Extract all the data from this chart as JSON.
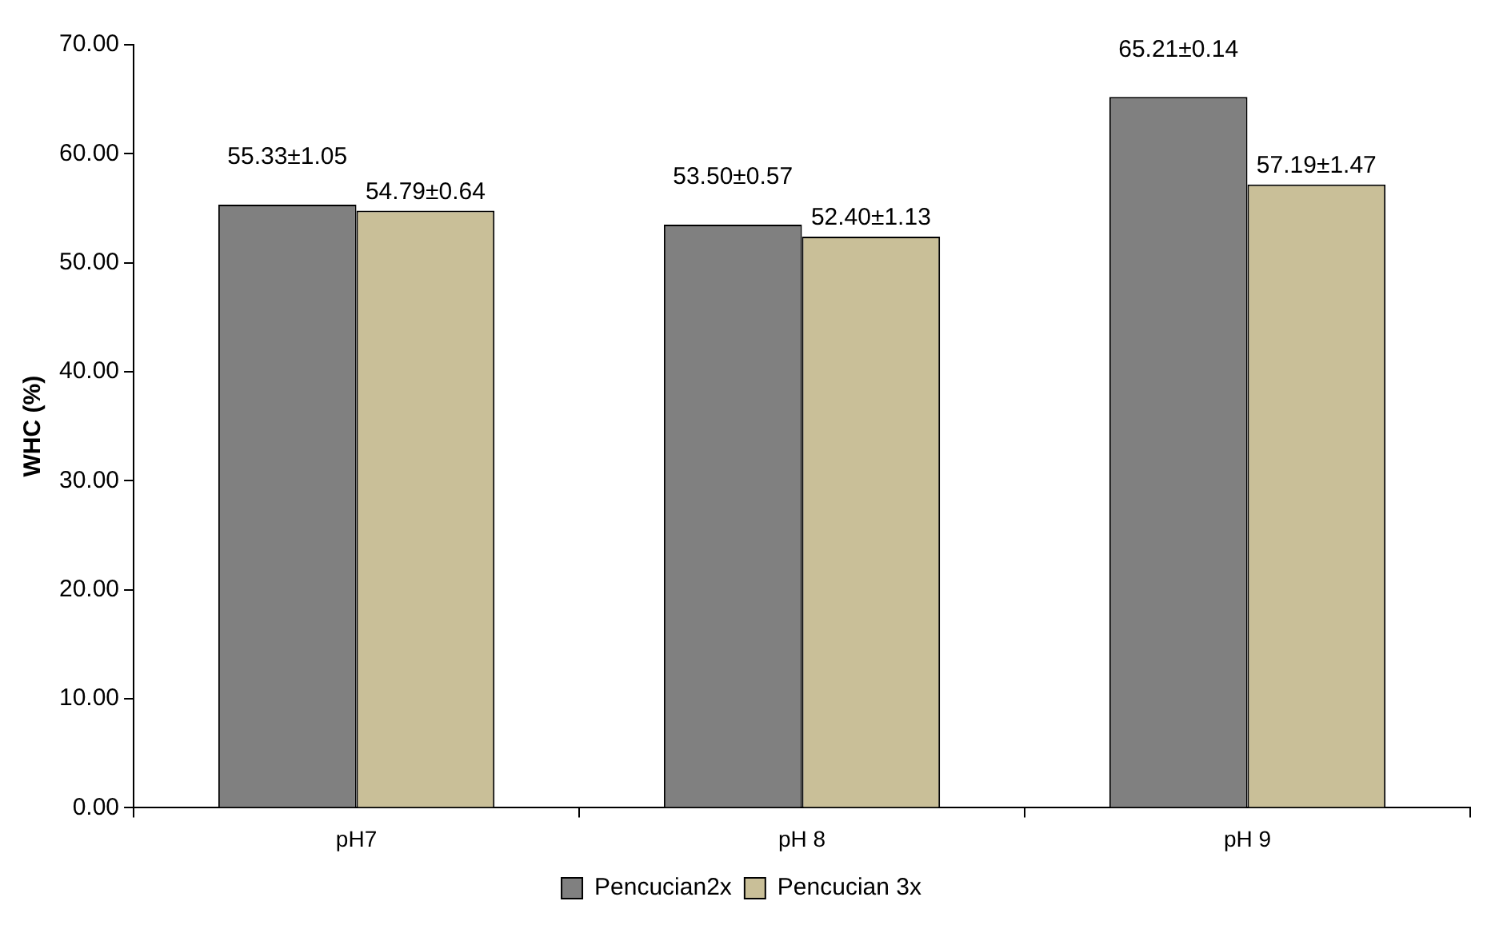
{
  "chart_data": {
    "type": "bar",
    "ylabel": "WHC (%)",
    "categories": [
      "pH7",
      "pH 8",
      "pH 9"
    ],
    "series": [
      {
        "name": "Pencucian2x",
        "color": "#808080",
        "values": [
          55.33,
          53.5,
          65.21
        ],
        "value_labels": [
          "55.33±1.05",
          "53.50±0.57",
          "65.21±0.14"
        ]
      },
      {
        "name": "Pencucian 3x",
        "color": "#c9bf98",
        "values": [
          54.79,
          52.4,
          57.19
        ],
        "value_labels": [
          "54.79±0.64",
          "52.40±1.13",
          "57.19±1.47"
        ]
      }
    ],
    "ylim": [
      0,
      70
    ],
    "yticks": [
      {
        "value": 0,
        "label": "0.00"
      },
      {
        "value": 10,
        "label": "10.00"
      },
      {
        "value": 20,
        "label": "20.00"
      },
      {
        "value": 30,
        "label": "30.00"
      },
      {
        "value": 40,
        "label": "40.00"
      },
      {
        "value": 50,
        "label": "50.00"
      },
      {
        "value": 60,
        "label": "60.00"
      },
      {
        "value": 70,
        "label": "70.00"
      }
    ],
    "grid": false,
    "legend": "bottom"
  }
}
